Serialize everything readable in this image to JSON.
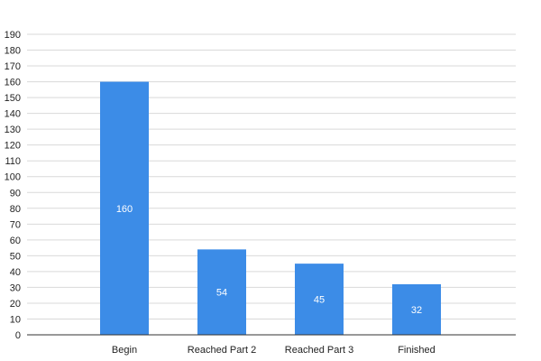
{
  "chart_data": {
    "type": "bar",
    "title": "",
    "xlabel": "",
    "ylabel": "",
    "categories": [
      "Begin",
      "Reached Part 2",
      "Reached Part 3",
      "Finished"
    ],
    "values": [
      160,
      54,
      45,
      32
    ],
    "data_labels": [
      "160",
      "54",
      "45",
      "32"
    ],
    "ylim": [
      0,
      190
    ],
    "y_ticks": [
      0,
      10,
      20,
      30,
      40,
      50,
      60,
      70,
      80,
      90,
      100,
      110,
      120,
      130,
      140,
      150,
      160,
      170,
      180,
      190
    ],
    "grid": true,
    "legend": "none",
    "colors": {
      "bar": "#3c8ce7",
      "grid": "#d9d9d9",
      "axis": "#333333",
      "data_label": "#ffffff"
    }
  }
}
